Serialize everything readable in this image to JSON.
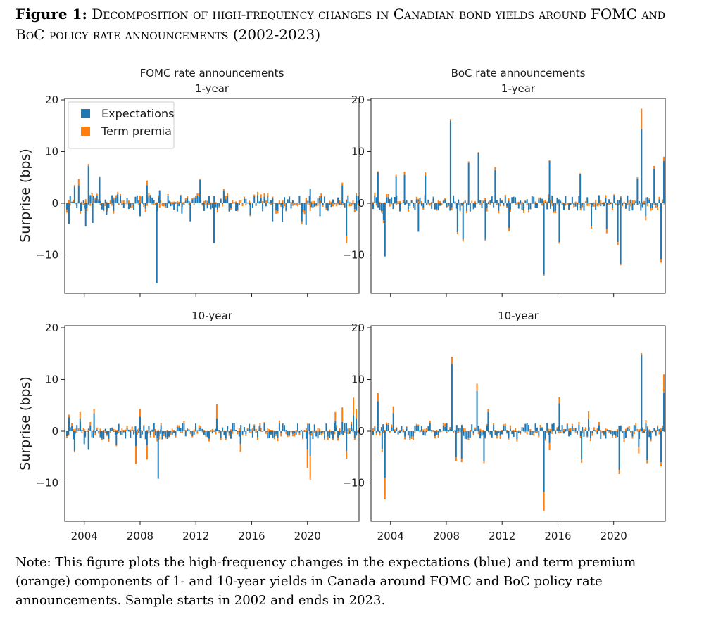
{
  "figure": {
    "label": "Figure 1:",
    "title": "Decomposition of high-frequency changes in Canadian bond yields around FOMC and BoC policy rate announcements (2002-2023)",
    "note": "Note: This figure plots the high-frequency changes in the expectations (blue) and term premium (orange) components of 1- and 10-year yields in Canada around FOMC and BoC policy rate announcements. Sample starts in 2002 and ends in 2023."
  },
  "chart_data": {
    "type": "bar",
    "stacked": true,
    "column_titles": [
      "FOMC rate announcements",
      "BoC rate announcements"
    ],
    "row_titles": [
      "1-year",
      "10-year"
    ],
    "ylabel": "Surprise (bps)",
    "ylim": [
      -17,
      21
    ],
    "xlim": [
      2002.6,
      2023.7
    ],
    "yticks": [
      20,
      10,
      0,
      -10
    ],
    "ytick_labels": [
      "20",
      "10",
      "0",
      "−10"
    ],
    "xticks": [
      2004,
      2008,
      2012,
      2016,
      2020
    ],
    "xtick_labels": [
      "2004",
      "2008",
      "2012",
      "2016",
      "2020"
    ],
    "legend": {
      "position": "top-left",
      "entries": [
        "Expectations",
        "Term premia"
      ]
    },
    "colors": {
      "Expectations": "#1f77b4",
      "Term premia": "#ff7f0e"
    },
    "panels": [
      {
        "column": "FOMC rate announcements",
        "row": "1-year",
        "x": [
          2002.9,
          2003.3,
          2003.6,
          2003.8,
          2004.1,
          2004.3,
          2004.6,
          2005.1,
          2005.6,
          2006.1,
          2006.4,
          2008.0,
          2008.5,
          2009.2,
          2009.4,
          2010.0,
          2011.0,
          2011.6,
          2012.3,
          2013.3,
          2014.0,
          2015.9,
          2017.5,
          2018.2,
          2019.6,
          2019.9,
          2020.2,
          2020.9,
          2022.5,
          2022.8,
          2023.5
        ],
        "series": [
          {
            "name": "Expectations",
            "values": [
              -4,
              3.2,
              3.5,
              -1.5,
              -4.5,
              7.2,
              -3.8,
              5,
              -2.2,
              -1.5,
              1.8,
              -2.5,
              3.5,
              -15.5,
              2.5,
              1.5,
              -2,
              -3.5,
              4.5,
              -7.7,
              2.5,
              -2.2,
              -3.5,
              -3.6,
              -3.5,
              -4.2,
              2.8,
              -2.5,
              3.5,
              -6.3,
              1.5
            ]
          },
          {
            "name": "Term premia",
            "values": [
              0.5,
              0.3,
              1.2,
              0.3,
              0.8,
              0.4,
              0.6,
              0.2,
              0.3,
              -0.5,
              0.4,
              1.5,
              0.9,
              0.2,
              -0.8,
              0.3,
              0.2,
              0.2,
              0.2,
              0.2,
              0.3,
              -0.3,
              0.2,
              0.4,
              -0.5,
              1.1,
              -1.5,
              0.6,
              0.5,
              -1.4,
              0.4
            ]
          }
        ]
      },
      {
        "column": "BoC rate announcements",
        "row": "1-year",
        "x": [
          2003.1,
          2003.5,
          2003.6,
          2004.4,
          2005.0,
          2006.0,
          2006.5,
          2008.3,
          2008.8,
          2009.2,
          2009.6,
          2010.3,
          2010.8,
          2011.5,
          2012.5,
          2015.0,
          2015.4,
          2016.1,
          2017.6,
          2018.4,
          2019.5,
          2020.3,
          2020.5,
          2021.7,
          2022.0,
          2022.3,
          2022.9,
          2023.4,
          2023.6
        ],
        "series": [
          {
            "name": "Expectations",
            "values": [
              6,
              -3.3,
              -10.3,
              5.2,
              5.5,
              -5.5,
              5.4,
              16,
              -5.6,
              -7,
              7.8,
              9.8,
              -7,
              6.4,
              -4.8,
              -13.8,
              8.2,
              -7.5,
              5.6,
              -4.5,
              -5,
              -7.5,
              -11.8,
              4.8,
              14.3,
              -2.5,
              6.7,
              -10.8,
              8.2
            ]
          },
          {
            "name": "Term premia",
            "values": [
              0.2,
              -0.5,
              0.2,
              0.3,
              0.6,
              0.4,
              0.6,
              0.3,
              -0.4,
              -0.4,
              0.3,
              0.1,
              -0.2,
              0.6,
              -0.6,
              -0.2,
              0.1,
              -0.3,
              0.2,
              -0.4,
              -0.8,
              -0.6,
              -0.2,
              0.2,
              4,
              -0.8,
              0.5,
              -0.7,
              0.8
            ]
          }
        ]
      },
      {
        "column": "FOMC rate announcements",
        "row": "10-year",
        "x": [
          2002.9,
          2003.3,
          2003.7,
          2004.0,
          2004.3,
          2004.7,
          2006.3,
          2007.7,
          2008.0,
          2008.5,
          2009.0,
          2009.3,
          2009.5,
          2013.5,
          2015.2,
          2016.6,
          2020.0,
          2020.2,
          2022.0,
          2022.5,
          2022.8,
          2023.3,
          2023.5
        ],
        "series": [
          {
            "name": "Expectations",
            "values": [
              2.7,
              -3.8,
              2.5,
              -2.5,
              -3.6,
              3.5,
              -2.6,
              -2.9,
              2.8,
              -2.7,
              1.5,
              -9.2,
              1.2,
              2.5,
              -2.5,
              1.2,
              -3.6,
              -4.8,
              2,
              1.8,
              -3.8,
              3.1,
              2.5
            ]
          },
          {
            "name": "Term premia",
            "values": [
              0.5,
              -0.3,
              1.2,
              0.4,
              0.3,
              0.8,
              -0.3,
              -3.5,
              1.5,
              -2.8,
              -1.2,
              0.3,
              0.4,
              2.7,
              -1.5,
              0.4,
              -3.5,
              -4.6,
              1.7,
              2.8,
              -1.5,
              3.4,
              1.8
            ]
          }
        ]
      },
      {
        "column": "BoC rate announcements",
        "row": "10-year",
        "x": [
          2003.1,
          2003.4,
          2003.6,
          2004.2,
          2008.4,
          2008.7,
          2009.1,
          2010.2,
          2010.7,
          2011.0,
          2015.0,
          2015.4,
          2016.1,
          2017.7,
          2018.2,
          2020.4,
          2021.8,
          2022.0,
          2022.4,
          2023.4,
          2023.6
        ],
        "series": [
          {
            "name": "Expectations",
            "values": [
              5.8,
              -3.5,
              -9,
              3.5,
              13,
              -5,
              -5.3,
              7.8,
              -5.8,
              3.7,
              -11.8,
              -2.3,
              5.4,
              -5.5,
              2.4,
              -7.5,
              -3.1,
              14.8,
              -5.6,
              -6,
              7.5
            ]
          },
          {
            "name": "Term premia",
            "values": [
              1.6,
              -0.5,
              -4.2,
              1.3,
              1.4,
              -0.8,
              -0.7,
              1.4,
              -0.4,
              0.6,
              -3.6,
              -1.4,
              1.2,
              -0.6,
              1.4,
              -0.8,
              -1.2,
              0.3,
              -0.6,
              -0.8,
              3.5
            ]
          }
        ]
      }
    ]
  }
}
